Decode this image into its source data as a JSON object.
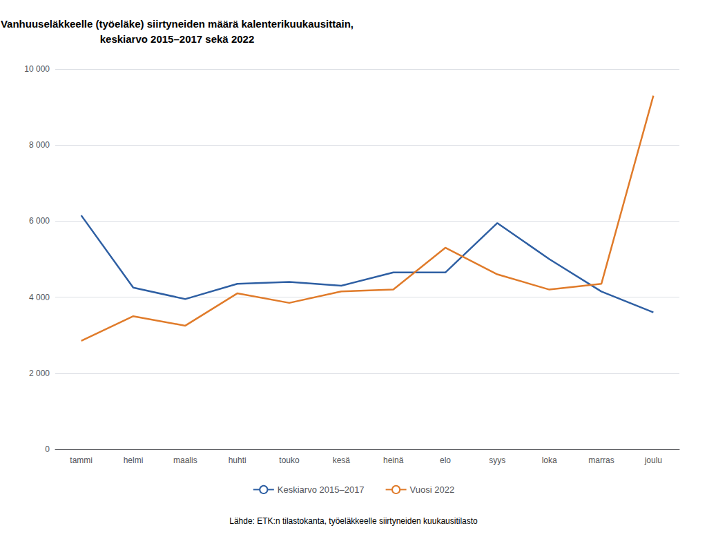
{
  "chart_data": {
    "type": "line",
    "title": "Vanhuuseläkkeelle (työeläke) siirtyneiden määrä kalenterikuukausittain,\nkeskiarvo 2015–2017 sekä 2022",
    "categories": [
      "tammi",
      "helmi",
      "maalis",
      "huhti",
      "touko",
      "kesä",
      "heinä",
      "elo",
      "syys",
      "loka",
      "marras",
      "joulu"
    ],
    "series": [
      {
        "name": "Keskiarvo 2015–2017",
        "color": "#2E5FA3",
        "values": [
          6150,
          4250,
          3950,
          4350,
          4400,
          4300,
          4650,
          4650,
          5950,
          5000,
          4150,
          3600
        ]
      },
      {
        "name": "Vuosi 2022",
        "color": "#E07B2A",
        "values": [
          2850,
          3500,
          3250,
          4100,
          3850,
          4150,
          4200,
          5300,
          4600,
          4200,
          4350,
          9300
        ]
      }
    ],
    "ylim": [
      0,
      10000
    ],
    "yticks": [
      0,
      {
        "value": 2000,
        "label": "2 000"
      },
      {
        "value": 4000,
        "label": "4 000"
      },
      {
        "value": 6000,
        "label": "6 000"
      },
      {
        "value": 8000,
        "label": "8 000"
      },
      {
        "value": 10000,
        "label": "10 000"
      }
    ],
    "grid": true,
    "legend": "bottom",
    "source": "Lähde: ETK:n tilastokanta, työeläkkeelle siirtyneiden kuukausitilasto"
  }
}
